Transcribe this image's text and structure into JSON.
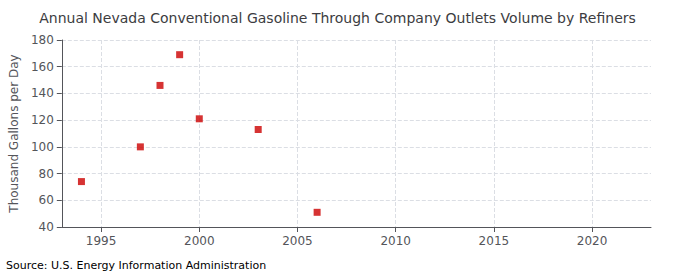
{
  "chart_data": {
    "type": "scatter",
    "title": "Annual Nevada Conventional Gasoline Through Company Outlets Volume by Refiners",
    "ylabel": "Thousand Gallons per Day",
    "annotation": "Source: U.S. Energy Information Administration",
    "x": [
      1994,
      1997,
      1998,
      1999,
      2000,
      2003,
      2006
    ],
    "values": [
      74,
      100,
      146,
      169,
      121,
      113,
      51
    ],
    "xlim": [
      1993,
      2023
    ],
    "ylim": [
      40,
      180
    ],
    "xticks": [
      1995,
      2000,
      2005,
      2010,
      2015,
      2020
    ],
    "yticks": [
      40,
      60,
      80,
      100,
      120,
      140,
      160,
      180
    ],
    "grid": true,
    "color": "#cc0000",
    "marker": "square"
  }
}
